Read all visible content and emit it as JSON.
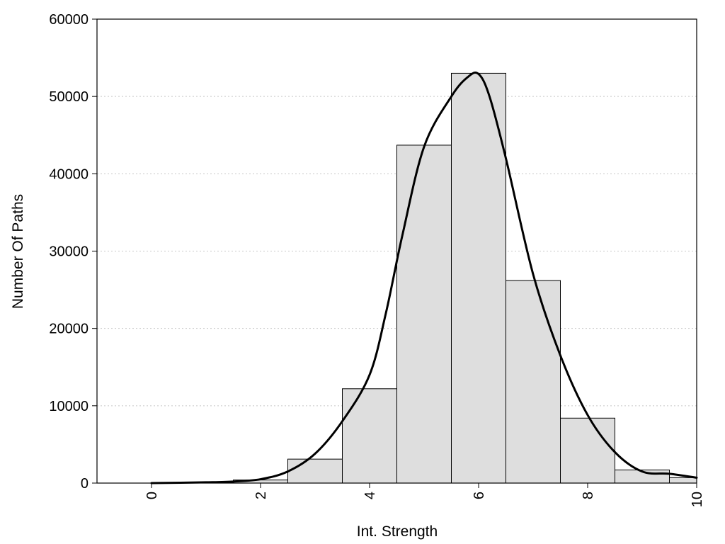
{
  "chart_data": {
    "type": "bar",
    "title": "",
    "xlabel": "Int. Strength",
    "ylabel": "Number Of Paths",
    "xlim": [
      -1,
      10
    ],
    "ylim": [
      0,
      60000
    ],
    "x_ticks": [
      0,
      2,
      4,
      6,
      8,
      10
    ],
    "y_ticks": [
      0,
      10000,
      20000,
      30000,
      40000,
      50000,
      60000
    ],
    "grid": "horizontal dotted",
    "legend": "none",
    "bin_width": 1,
    "bins": [
      {
        "x": 0,
        "value": 0
      },
      {
        "x": 1,
        "value": 100
      },
      {
        "x": 2,
        "value": 400
      },
      {
        "x": 3,
        "value": 3100
      },
      {
        "x": 4,
        "value": 12200
      },
      {
        "x": 5,
        "value": 43700
      },
      {
        "x": 6,
        "value": 53000
      },
      {
        "x": 7,
        "value": 26200
      },
      {
        "x": 8,
        "value": 8400
      },
      {
        "x": 9,
        "value": 1700
      },
      {
        "x": 10,
        "value": 700
      }
    ],
    "density_curve": {
      "x": [
        0,
        1,
        1.5,
        2,
        2.5,
        3,
        3.5,
        4,
        4.3,
        4.6,
        5,
        5.5,
        5.8,
        6,
        6.2,
        6.5,
        7,
        7.5,
        8,
        8.5,
        9,
        9.5,
        10
      ],
      "y": [
        0,
        100,
        200,
        500,
        1500,
        3800,
        8000,
        14000,
        22000,
        32000,
        43500,
        50000,
        52500,
        52900,
        50000,
        42000,
        27000,
        16500,
        8800,
        4000,
        1500,
        1200,
        700
      ]
    },
    "colors": {
      "bar_fill": "#dedede",
      "bar_stroke": "#000000",
      "curve": "#000000",
      "grid": "#c8c8c8"
    }
  }
}
